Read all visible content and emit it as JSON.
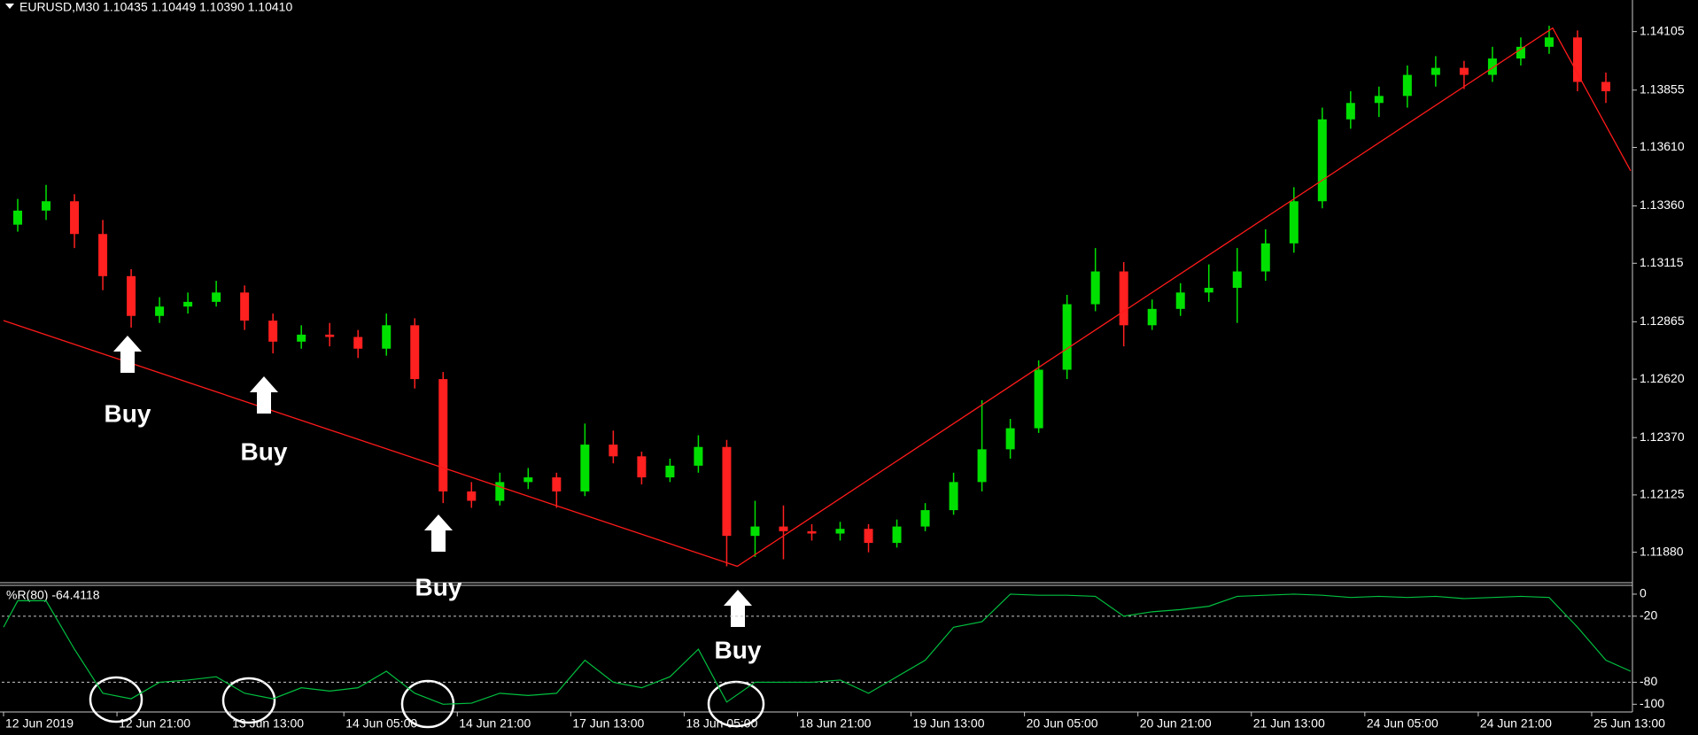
{
  "chart_data": [
    {
      "type": "candlestick",
      "title": "EURUSD,M30  1.10435 1.10449 1.10390 1.10410",
      "x": [
        4,
        12,
        20,
        28,
        36,
        44,
        52,
        60,
        68,
        76,
        84,
        92,
        100,
        108,
        116,
        124,
        132,
        140,
        148,
        156,
        164,
        172,
        180,
        188,
        196,
        204,
        212,
        220,
        228,
        236,
        244,
        252,
        260,
        268,
        276,
        284,
        292,
        300,
        308,
        316,
        324,
        332,
        340,
        348,
        356,
        364,
        372,
        380,
        388,
        396,
        404,
        412,
        420,
        428,
        436,
        444,
        452
      ],
      "open": [
        1.1328,
        1.1334,
        1.1338,
        1.1324,
        1.1306,
        1.1289,
        1.1293,
        1.1295,
        1.1299,
        1.1287,
        1.1278,
        1.1281,
        1.128,
        1.1275,
        1.1285,
        1.1262,
        1.1214,
        1.121,
        1.1218,
        1.122,
        1.1214,
        1.1234,
        1.1229,
        1.122,
        1.1225,
        1.1233,
        1.1195,
        1.1199,
        1.1197,
        1.1196,
        1.1198,
        1.1192,
        1.1199,
        1.1206,
        1.1218,
        1.1232,
        1.1241,
        1.1266,
        1.1294,
        1.1308,
        1.1285,
        1.1292,
        1.1299,
        1.1301,
        1.1308,
        1.132,
        1.1338,
        1.1373,
        1.138,
        1.1383,
        1.1392,
        1.1395,
        1.1392,
        1.1399,
        1.1404,
        1.1408,
        1.1389
      ],
      "high": [
        1.1339,
        1.1345,
        1.1341,
        1.133,
        1.1309,
        1.1297,
        1.1299,
        1.1304,
        1.1302,
        1.129,
        1.1285,
        1.1286,
        1.1283,
        1.129,
        1.1288,
        1.1265,
        1.1218,
        1.1222,
        1.1224,
        1.1222,
        1.1243,
        1.124,
        1.1231,
        1.1228,
        1.1238,
        1.1236,
        1.121,
        1.1208,
        1.12,
        1.1201,
        1.12,
        1.1202,
        1.1209,
        1.1222,
        1.1253,
        1.1245,
        1.127,
        1.1298,
        1.1318,
        1.1312,
        1.1296,
        1.1303,
        1.1311,
        1.1318,
        1.1326,
        1.1344,
        1.1378,
        1.1385,
        1.1387,
        1.1396,
        1.14,
        1.1398,
        1.1404,
        1.1408,
        1.1413,
        1.1411,
        1.1393
      ],
      "low": [
        1.1325,
        1.133,
        1.1318,
        1.13,
        1.1284,
        1.1286,
        1.129,
        1.1293,
        1.1283,
        1.1273,
        1.1275,
        1.1276,
        1.1271,
        1.1272,
        1.1258,
        1.1209,
        1.1207,
        1.1208,
        1.1215,
        1.1207,
        1.1212,
        1.1226,
        1.1217,
        1.1218,
        1.1222,
        1.1182,
        1.1186,
        1.1185,
        1.1193,
        1.1193,
        1.1188,
        1.119,
        1.1197,
        1.1204,
        1.1214,
        1.1228,
        1.1239,
        1.1262,
        1.1291,
        1.1276,
        1.1283,
        1.1289,
        1.1295,
        1.1286,
        1.1304,
        1.1316,
        1.1335,
        1.1369,
        1.1374,
        1.1378,
        1.1387,
        1.1386,
        1.1389,
        1.1396,
        1.1401,
        1.1385,
        1.138
      ],
      "close": [
        1.1334,
        1.1338,
        1.1324,
        1.1306,
        1.1289,
        1.1293,
        1.1295,
        1.1299,
        1.1287,
        1.1278,
        1.1281,
        1.128,
        1.1275,
        1.1285,
        1.1262,
        1.1214,
        1.121,
        1.1218,
        1.122,
        1.1214,
        1.1234,
        1.1229,
        1.122,
        1.1225,
        1.1233,
        1.1195,
        1.1199,
        1.1197,
        1.1196,
        1.1198,
        1.1192,
        1.1199,
        1.1206,
        1.1218,
        1.1232,
        1.1241,
        1.1266,
        1.1294,
        1.1308,
        1.1285,
        1.1292,
        1.1299,
        1.1301,
        1.1308,
        1.132,
        1.1338,
        1.1373,
        1.138,
        1.1383,
        1.1392,
        1.1395,
        1.1392,
        1.1399,
        1.1404,
        1.1408,
        1.1389,
        1.1385
      ],
      "up_color": "#00e000",
      "down_color": "#ff2020",
      "xlim": [
        -0.5,
        459.5
      ],
      "ylim": [
        1.1175,
        1.1424
      ],
      "yticks": [
        1.14105,
        1.13855,
        {
          "value": 1.1361,
          "label": "1.13610"
        },
        {
          "value": 1.1336,
          "label": "1.13360"
        },
        1.13115,
        1.12865,
        {
          "value": 1.1262,
          "label": "1.12620"
        },
        {
          "value": 1.1237,
          "label": "1.12370"
        },
        1.12125,
        {
          "value": 1.1188,
          "label": "1.11880"
        }
      ],
      "trendline": {
        "color": "#ff1a1a",
        "x": [
          0,
          207,
          437,
          459
        ],
        "y": [
          1.1287,
          1.1182,
          1.1412,
          1.1351
        ]
      },
      "annotations": [
        "Buy",
        "Buy",
        "Buy",
        "Buy"
      ]
    },
    {
      "type": "line",
      "title": "%R(80) -64.4118",
      "x": [
        0,
        4,
        12,
        20,
        28,
        36,
        44,
        52,
        60,
        68,
        76,
        84,
        92,
        100,
        108,
        116,
        124,
        132,
        140,
        148,
        156,
        164,
        172,
        180,
        188,
        196,
        204,
        212,
        220,
        228,
        236,
        244,
        252,
        260,
        268,
        276,
        284,
        292,
        300,
        308,
        316,
        324,
        332,
        340,
        348,
        356,
        364,
        372,
        380,
        388,
        396,
        404,
        412,
        420,
        428,
        436,
        444,
        452,
        459
      ],
      "values": [
        -30,
        -6,
        -6,
        -50,
        -90,
        -95,
        -80,
        -78,
        -75,
        -90,
        -95,
        -85,
        -88,
        -85,
        -70,
        -90,
        -100,
        -99,
        -90,
        -92,
        -90,
        -60,
        -80,
        -85,
        -75,
        -50,
        -98,
        -80,
        -80,
        -80,
        -78,
        -90,
        -75,
        -60,
        -30,
        -25,
        0,
        -1,
        -1,
        -2,
        -20,
        -16,
        -14,
        -11,
        -2,
        -1,
        0,
        -1,
        -3,
        -2,
        -3,
        -2,
        -4,
        -3,
        -2,
        -3,
        -30,
        -60,
        -70
      ],
      "color": "#00c040",
      "xlim": [
        -0.5,
        459.5
      ],
      "ylim": [
        -107,
        8
      ],
      "yticks": [
        0,
        -20,
        -80,
        -100
      ],
      "levels": [
        -20,
        -80
      ],
      "xticks": [
        {
          "value": 0,
          "label": "12 Jun 2019"
        },
        {
          "value": 32,
          "label": "12 Jun 21:00"
        },
        {
          "value": 64,
          "label": "13 Jun 13:00"
        },
        {
          "value": 96,
          "label": "14 Jun 05:00"
        },
        {
          "value": 128,
          "label": "14 Jun 21:00"
        },
        {
          "value": 160,
          "label": "17 Jun 13:00"
        },
        {
          "value": 192,
          "label": "18 Jun 05:00"
        },
        {
          "value": 224,
          "label": "18 Jun 21:00"
        },
        {
          "value": 256,
          "label": "19 Jun 13:00"
        },
        {
          "value": 288,
          "label": "20 Jun 05:00"
        },
        {
          "value": 320,
          "label": "20 Jun 21:00"
        },
        {
          "value": 352,
          "label": "21 Jun 13:00"
        },
        {
          "value": 384,
          "label": "24 Jun 05:00"
        },
        {
          "value": 416,
          "label": "24 Jun 21:00"
        },
        {
          "value": 448,
          "label": "25 Jun 13:00"
        }
      ]
    }
  ]
}
